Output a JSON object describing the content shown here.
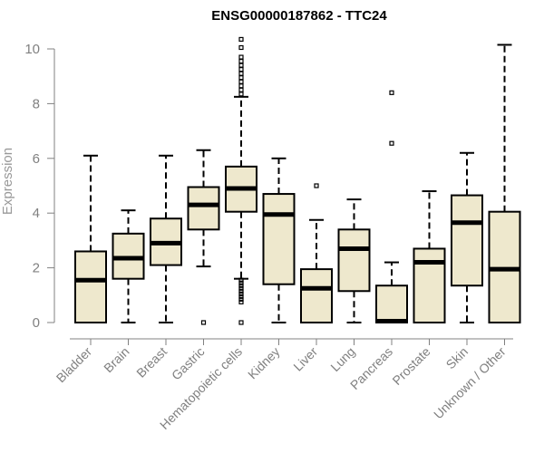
{
  "chart_data": {
    "type": "boxplot",
    "title": "ENSG00000187862 - TTC24",
    "xlabel": "",
    "ylabel": "Expression",
    "ylim": [
      0,
      10.3
    ],
    "yticks": [
      0,
      2,
      4,
      6,
      8,
      10
    ],
    "box_color": "#EEE8CD",
    "categories": [
      "Bladder",
      "Brain",
      "Breast",
      "Gastric",
      "Hematopoietic cells",
      "Kidney",
      "Liver",
      "Lung",
      "Pancreas",
      "Prostate",
      "Skin",
      "Unknown / Other"
    ],
    "boxes": [
      {
        "whisker_low": 0,
        "q1": 0,
        "median": 1.55,
        "q3": 2.6,
        "whisker_high": 6.1,
        "outliers": []
      },
      {
        "whisker_low": 0,
        "q1": 1.6,
        "median": 2.35,
        "q3": 3.25,
        "whisker_high": 4.1,
        "outliers": []
      },
      {
        "whisker_low": 0,
        "q1": 2.1,
        "median": 2.9,
        "q3": 3.8,
        "whisker_high": 6.1,
        "outliers": []
      },
      {
        "whisker_low": 2.05,
        "q1": 3.4,
        "median": 4.3,
        "q3": 4.95,
        "whisker_high": 6.3,
        "outliers": [
          0
        ]
      },
      {
        "whisker_low": 1.6,
        "q1": 4.05,
        "median": 4.9,
        "q3": 5.7,
        "whisker_high": 8.25,
        "outliers": [
          0,
          0.75,
          0.85,
          0.95,
          1.05,
          1.15,
          1.25,
          1.35,
          1.45,
          1.55,
          8.35,
          8.5,
          8.65,
          8.8,
          8.95,
          9.1,
          9.25,
          9.4,
          9.55,
          9.7,
          10.05,
          10.35
        ]
      },
      {
        "whisker_low": 0,
        "q1": 1.4,
        "median": 3.95,
        "q3": 4.7,
        "whisker_high": 6.0,
        "outliers": []
      },
      {
        "whisker_low": 0,
        "q1": 0,
        "median": 1.25,
        "q3": 1.95,
        "whisker_high": 3.75,
        "outliers": [
          5.0
        ]
      },
      {
        "whisker_low": 0,
        "q1": 1.15,
        "median": 2.7,
        "q3": 3.4,
        "whisker_high": 4.5,
        "outliers": []
      },
      {
        "whisker_low": 0,
        "q1": 0,
        "median": 0.05,
        "q3": 1.35,
        "whisker_high": 2.2,
        "outliers": [
          6.55,
          8.4
        ]
      },
      {
        "whisker_low": 0,
        "q1": 0,
        "median": 2.2,
        "q3": 2.7,
        "whisker_high": 4.8,
        "outliers": []
      },
      {
        "whisker_low": 0,
        "q1": 1.35,
        "median": 3.65,
        "q3": 4.65,
        "whisker_high": 6.2,
        "outliers": []
      },
      {
        "whisker_low": 0,
        "q1": 0,
        "median": 1.95,
        "q3": 4.05,
        "whisker_high": 10.15,
        "outliers": []
      }
    ]
  }
}
